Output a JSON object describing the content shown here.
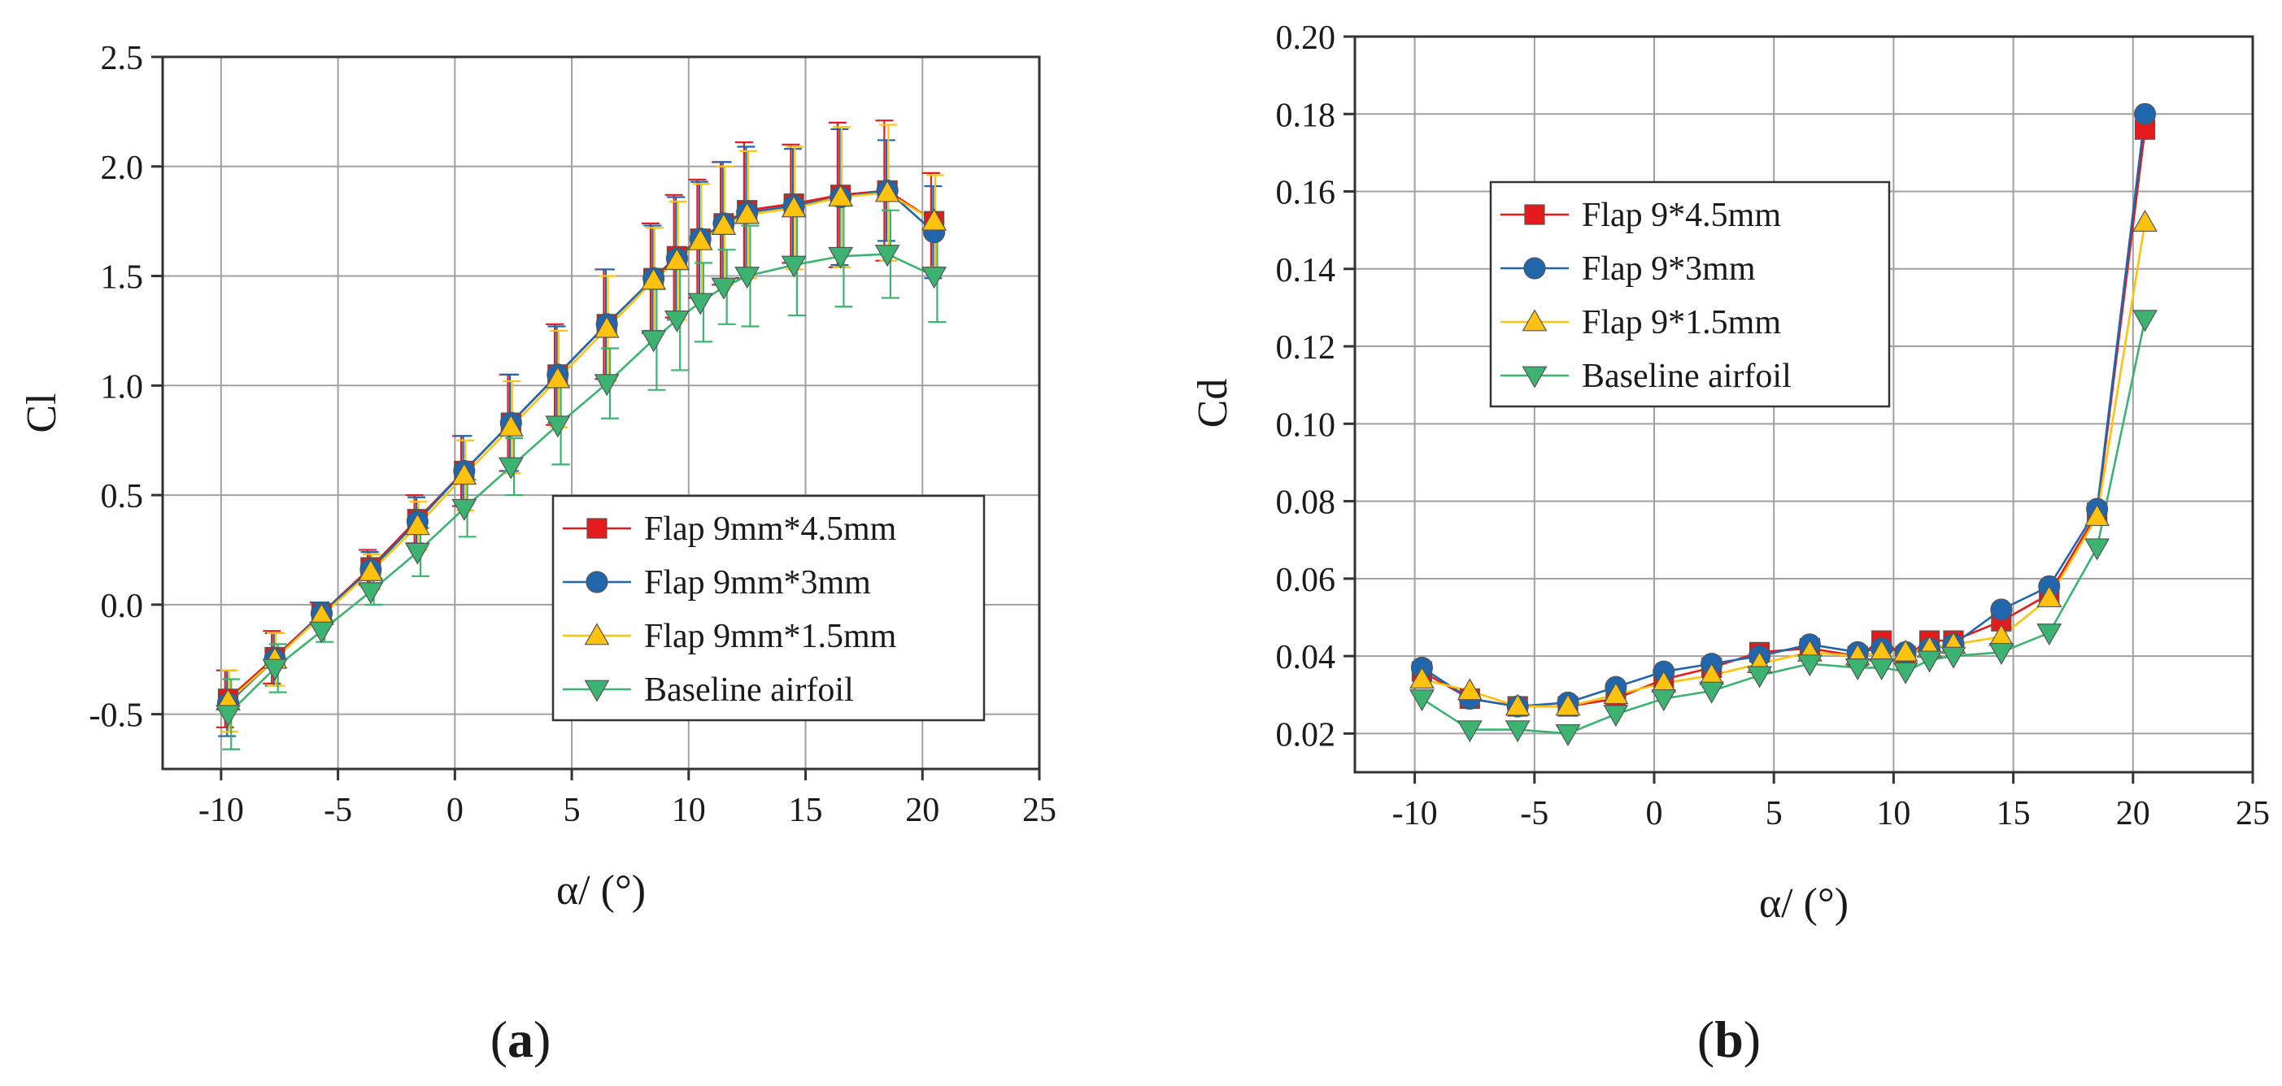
{
  "chart_data": [
    {
      "type": "line",
      "panel": "a",
      "panel_label": "a",
      "title": "",
      "xlabel": "α/ (°)",
      "ylabel": "Cl",
      "xlim": [
        -12.5,
        25
      ],
      "ylim": [
        -0.75,
        2.5
      ],
      "xticks": [
        -10,
        -5,
        0,
        5,
        10,
        15,
        20,
        25
      ],
      "xtick_labels": [
        "-10",
        "-5",
        "0",
        "5",
        "10",
        "15",
        "20",
        "25"
      ],
      "yticks": [
        -0.5,
        0.0,
        0.5,
        1.0,
        1.5,
        2.0,
        2.5
      ],
      "ytick_labels": [
        "-0.5",
        "0.0",
        "0.5",
        "1.0",
        "1.5",
        "2.0",
        "2.5"
      ],
      "grid": true,
      "legend_position": "bottom-right",
      "x": [
        -9.7,
        -7.7,
        -5.7,
        -3.6,
        -1.6,
        0.4,
        2.4,
        4.4,
        6.5,
        8.5,
        9.5,
        10.5,
        11.5,
        12.5,
        14.5,
        16.5,
        18.5,
        20.5
      ],
      "series": [
        {
          "name": "Flap 9mm*4.5mm",
          "color": "#e41a1c",
          "marker": "square",
          "values": [
            -0.43,
            -0.24,
            -0.04,
            0.17,
            0.39,
            0.61,
            0.83,
            1.05,
            1.28,
            1.49,
            1.59,
            1.67,
            1.74,
            1.8,
            1.83,
            1.87,
            1.89,
            1.75
          ],
          "error": [
            0.13,
            0.12,
            0.05,
            0.08,
            0.11,
            0.16,
            0.22,
            0.23,
            0.25,
            0.25,
            0.28,
            0.27,
            0.28,
            0.31,
            0.27,
            0.33,
            0.32,
            0.22
          ]
        },
        {
          "name": "Flap 9mm*3mm",
          "color": "#2166ac",
          "marker": "circle",
          "values": [
            -0.45,
            -0.25,
            -0.04,
            0.16,
            0.38,
            0.61,
            0.83,
            1.05,
            1.28,
            1.49,
            1.58,
            1.67,
            1.74,
            1.79,
            1.82,
            1.86,
            1.89,
            1.7
          ],
          "error": [
            0.15,
            0.12,
            0.05,
            0.08,
            0.11,
            0.16,
            0.22,
            0.22,
            0.25,
            0.24,
            0.28,
            0.26,
            0.28,
            0.3,
            0.26,
            0.31,
            0.23,
            0.21
          ]
        },
        {
          "name": "Flap 9mm*1.5mm",
          "color": "#ffc20e",
          "marker": "triangle-up",
          "values": [
            -0.44,
            -0.25,
            -0.05,
            0.15,
            0.36,
            0.59,
            0.81,
            1.03,
            1.26,
            1.48,
            1.57,
            1.66,
            1.73,
            1.78,
            1.81,
            1.86,
            1.88,
            1.75
          ],
          "error": [
            0.14,
            0.12,
            0.05,
            0.08,
            0.11,
            0.16,
            0.21,
            0.22,
            0.24,
            0.24,
            0.27,
            0.26,
            0.27,
            0.29,
            0.28,
            0.32,
            0.31,
            0.21
          ]
        },
        {
          "name": "Baseline airfoil",
          "color": "#3cb371",
          "marker": "triangle-down",
          "values": [
            -0.5,
            -0.29,
            -0.12,
            0.06,
            0.24,
            0.44,
            0.63,
            0.82,
            1.01,
            1.21,
            1.3,
            1.38,
            1.45,
            1.5,
            1.55,
            1.59,
            1.6,
            1.5
          ],
          "error": [
            0.16,
            0.11,
            0.05,
            0.06,
            0.11,
            0.13,
            0.13,
            0.18,
            0.16,
            0.23,
            0.23,
            0.18,
            0.17,
            0.23,
            0.23,
            0.23,
            0.2,
            0.21
          ]
        }
      ]
    },
    {
      "type": "line",
      "panel": "b",
      "panel_label": "b",
      "title": "",
      "xlabel": "α/ (°)",
      "ylabel": "Cd",
      "xlim": [
        -12.5,
        25
      ],
      "ylim": [
        0.01,
        0.2
      ],
      "xticks": [
        -10,
        -5,
        0,
        5,
        10,
        15,
        20,
        25
      ],
      "xtick_labels": [
        "-10",
        "-5",
        "0",
        "5",
        "10",
        "15",
        "20",
        "25"
      ],
      "yticks": [
        0.02,
        0.04,
        0.06,
        0.08,
        0.1,
        0.12,
        0.14,
        0.16,
        0.18,
        0.2
      ],
      "ytick_labels": [
        "0.02",
        "0.04",
        "0.06",
        "0.08",
        "0.10",
        "0.12",
        "0.14",
        "0.16",
        "0.18",
        "0.20"
      ],
      "grid": true,
      "legend_position": "top-left",
      "x": [
        -9.7,
        -7.7,
        -5.7,
        -3.6,
        -1.6,
        0.4,
        2.4,
        4.4,
        6.5,
        8.5,
        9.5,
        10.5,
        11.5,
        12.5,
        14.5,
        16.5,
        18.5,
        20.5
      ],
      "series": [
        {
          "name": "Flap 9*4.5mm",
          "color": "#e41a1c",
          "marker": "square",
          "values": [
            0.036,
            0.029,
            0.027,
            0.027,
            0.029,
            0.034,
            0.037,
            0.041,
            0.042,
            0.04,
            0.044,
            0.04,
            0.044,
            0.044,
            0.049,
            0.056,
            0.077,
            0.176
          ]
        },
        {
          "name": "Flap 9*3mm",
          "color": "#2166ac",
          "marker": "circle",
          "values": [
            0.037,
            0.029,
            0.027,
            0.028,
            0.032,
            0.036,
            0.038,
            0.04,
            0.043,
            0.041,
            0.042,
            0.041,
            0.042,
            0.043,
            0.052,
            0.058,
            0.078,
            0.18
          ]
        },
        {
          "name": "Flap 9*1.5mm",
          "color": "#ffc20e",
          "marker": "triangle-up",
          "values": [
            0.034,
            0.031,
            0.027,
            0.027,
            0.03,
            0.033,
            0.035,
            0.038,
            0.041,
            0.04,
            0.041,
            0.041,
            0.042,
            0.043,
            0.045,
            0.055,
            0.076,
            0.152
          ]
        },
        {
          "name": "Baseline airfoil",
          "color": "#3cb371",
          "marker": "triangle-down",
          "values": [
            0.029,
            0.021,
            0.021,
            0.02,
            0.025,
            0.029,
            0.031,
            0.035,
            0.038,
            0.037,
            0.037,
            0.036,
            0.039,
            0.04,
            0.041,
            0.046,
            0.068,
            0.127
          ]
        }
      ]
    }
  ]
}
